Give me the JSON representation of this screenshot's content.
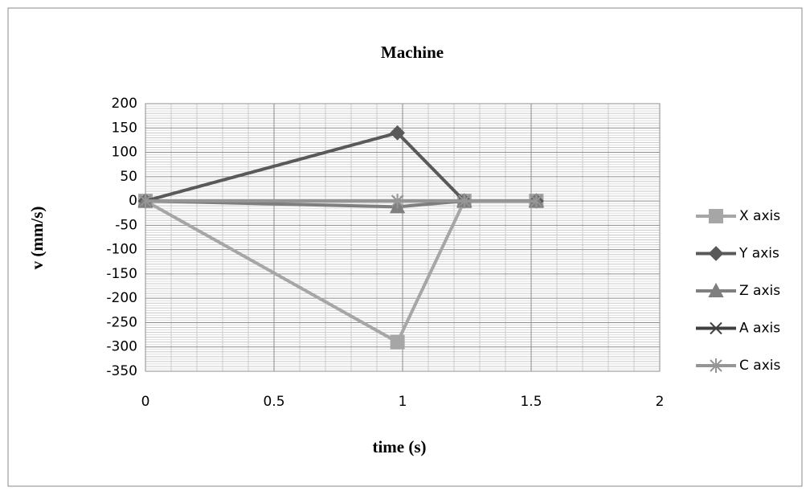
{
  "chart_data": {
    "type": "line",
    "title": "Machine",
    "x_label": "time (s)",
    "y_label": "v (mm/s)",
    "x": [
      0,
      0.98,
      1.24,
      1.52
    ],
    "series": [
      {
        "name": "X axis",
        "color": "#a6a6a6",
        "marker": "square",
        "values": [
          0,
          -290,
          0,
          0
        ]
      },
      {
        "name": "Y axis",
        "color": "#595959",
        "marker": "diamond",
        "values": [
          0,
          140,
          0,
          0
        ]
      },
      {
        "name": "Z axis",
        "color": "#7f7f7f",
        "marker": "triangle",
        "values": [
          0,
          -12,
          0,
          0
        ]
      },
      {
        "name": "A axis",
        "color": "#404040",
        "marker": "x",
        "values": [
          0,
          0,
          0,
          0
        ]
      },
      {
        "name": "C axis",
        "color": "#969696",
        "marker": "star",
        "values": [
          0,
          0,
          0,
          0
        ]
      }
    ],
    "xlim": [
      0,
      2
    ],
    "xticks": [
      0,
      0.5,
      1,
      1.5,
      2
    ],
    "ylim": [
      -350,
      200
    ],
    "yticks": [
      200,
      150,
      100,
      50,
      0,
      -50,
      -100,
      -150,
      -200,
      -250,
      -300,
      -350
    ],
    "grid": true,
    "minor_grid": true,
    "legend": "right"
  }
}
